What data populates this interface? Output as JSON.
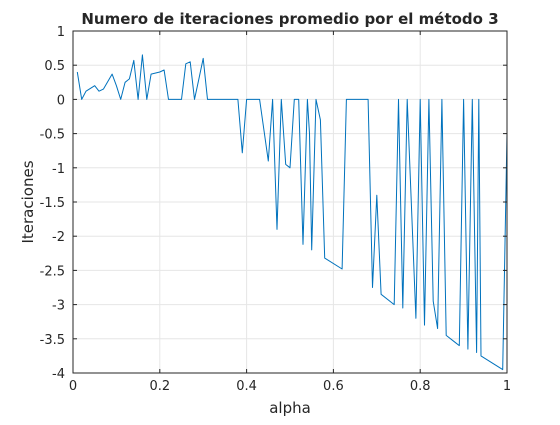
{
  "chart_data": {
    "type": "line",
    "title": "Numero de iteraciones promedio por el método 3",
    "xlabel": "alpha",
    "ylabel": "Iteraciones",
    "xlim": [
      0,
      1
    ],
    "ylim": [
      -4,
      1
    ],
    "xticks": [
      0,
      0.2,
      0.4,
      0.6,
      0.8,
      1
    ],
    "xtick_labels": [
      "0",
      "0.2",
      "0.4",
      "0.6",
      "0.8",
      "1"
    ],
    "yticks": [
      1,
      0.5,
      0,
      -0.5,
      -1,
      -1.5,
      -2,
      -2.5,
      -3,
      -3.5,
      -4
    ],
    "ytick_labels": [
      "1",
      "0.5",
      "0",
      "-0.5",
      "-1",
      "-1.5",
      "-2",
      "-2.5",
      "-3",
      "-3.5",
      "-4"
    ],
    "grid": true,
    "line_color": "#0072BD",
    "series": [
      {
        "x": [
          0.01,
          0.02,
          0.03,
          0.05,
          0.06,
          0.07,
          0.09,
          0.1,
          0.11,
          0.12,
          0.13,
          0.14,
          0.15,
          0.16,
          0.17,
          0.18,
          0.2,
          0.21,
          0.22,
          0.25,
          0.26,
          0.27,
          0.28,
          0.29,
          0.3,
          0.31,
          0.36,
          0.38,
          0.39,
          0.4,
          0.43,
          0.45,
          0.46,
          0.47,
          0.48,
          0.49,
          0.5,
          0.51,
          0.52,
          0.53,
          0.54,
          0.545,
          0.55,
          0.56,
          0.57,
          0.58,
          0.62,
          0.63,
          0.68,
          0.69,
          0.7,
          0.71,
          0.74,
          0.75,
          0.76,
          0.77,
          0.79,
          0.8,
          0.81,
          0.82,
          0.83,
          0.84,
          0.85,
          0.86,
          0.88,
          0.89,
          0.9,
          0.91,
          0.92,
          0.93,
          0.935,
          0.94,
          0.99,
          1.0,
          1.0
        ],
        "y": [
          0.4,
          0.0,
          0.12,
          0.2,
          0.12,
          0.15,
          0.37,
          0.2,
          0.0,
          0.25,
          0.3,
          0.57,
          0.0,
          0.65,
          0.0,
          0.37,
          0.4,
          0.43,
          0.0,
          0.0,
          0.52,
          0.55,
          0.0,
          0.3,
          0.6,
          0.0,
          0.0,
          0.0,
          -0.78,
          0.0,
          0.0,
          -0.9,
          0.0,
          -1.9,
          0.0,
          -0.95,
          -1.0,
          0.0,
          0.0,
          -2.12,
          0.0,
          -0.5,
          -2.2,
          0.0,
          -0.3,
          -2.32,
          -2.48,
          0.0,
          0.0,
          -2.75,
          -1.4,
          -2.85,
          -3.0,
          0.0,
          -3.05,
          0.0,
          -3.2,
          0.0,
          -3.3,
          0.0,
          -2.95,
          -3.35,
          0.0,
          -3.45,
          -3.55,
          -3.6,
          0.0,
          -3.65,
          0.0,
          -3.7,
          0.0,
          -3.75,
          -3.95,
          -0.5,
          -4.0
        ]
      }
    ]
  }
}
